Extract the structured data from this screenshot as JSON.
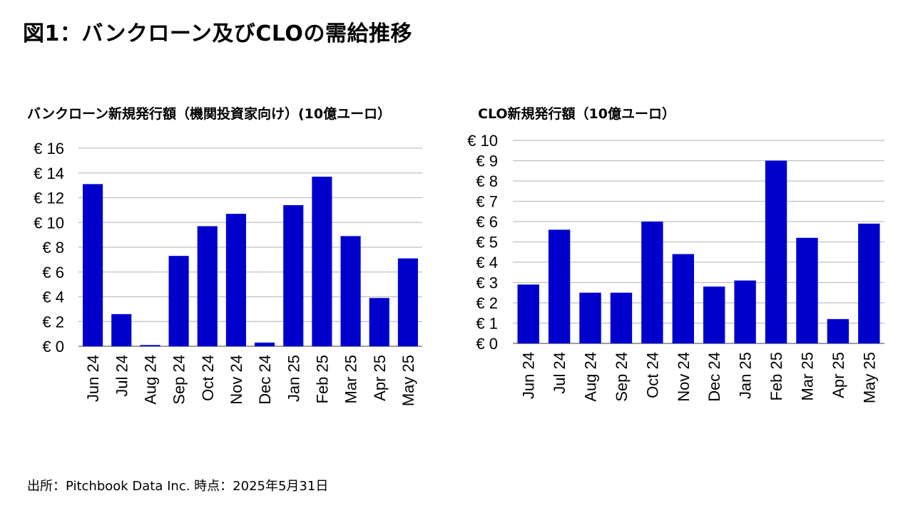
{
  "page_title": "図1：バンクローン及びCLOの需給推移",
  "source_note": "出所：Pitchbook Data Inc. 時点：2025年5月31日",
  "colors": {
    "bar": "#0000CC",
    "grid": "#BFBFBF",
    "axis": "#7F7F7F"
  },
  "chart_data": [
    {
      "type": "bar",
      "title": "バンクローン新規発行額（機関投資家向け）(10億ユーロ）",
      "categories": [
        "Jun 24",
        "Jul 24",
        "Aug 24",
        "Sep 24",
        "Oct 24",
        "Nov 24",
        "Dec 24",
        "Jan 25",
        "Feb 25",
        "Mar 25",
        "Apr 25",
        "May 25"
      ],
      "values": [
        13.1,
        2.6,
        0.1,
        7.3,
        9.7,
        10.7,
        0.3,
        11.4,
        13.7,
        8.9,
        3.9,
        7.1
      ],
      "ylim": [
        0,
        16
      ],
      "yticks": [
        0,
        2,
        4,
        6,
        8,
        10,
        12,
        14,
        16
      ],
      "ytick_labels": [
        "€ 0",
        "€ 2",
        "€ 4",
        "€ 6",
        "€ 8",
        "€ 10",
        "€ 12",
        "€ 14",
        "€ 16"
      ],
      "grid": true,
      "legend": "none"
    },
    {
      "type": "bar",
      "title": "CLO新規発行額（10億ユーロ）",
      "categories": [
        "Jun 24",
        "Jul 24",
        "Aug 24",
        "Sep 24",
        "Oct 24",
        "Nov 24",
        "Dec 24",
        "Jan 25",
        "Feb 25",
        "Mar 25",
        "Apr 25",
        "May 25"
      ],
      "values": [
        2.9,
        5.6,
        2.5,
        2.5,
        6.0,
        4.4,
        2.8,
        3.1,
        9.0,
        5.2,
        1.2,
        5.9
      ],
      "ylim": [
        0,
        10
      ],
      "yticks": [
        0,
        1,
        2,
        3,
        4,
        5,
        6,
        7,
        8,
        9,
        10
      ],
      "ytick_labels": [
        "€ 0",
        "€ 1",
        "€ 2",
        "€ 3",
        "€ 4",
        "€ 5",
        "€ 6",
        "€ 7",
        "€ 8",
        "€ 9",
        "€ 10"
      ],
      "grid": true,
      "legend": "none"
    }
  ]
}
